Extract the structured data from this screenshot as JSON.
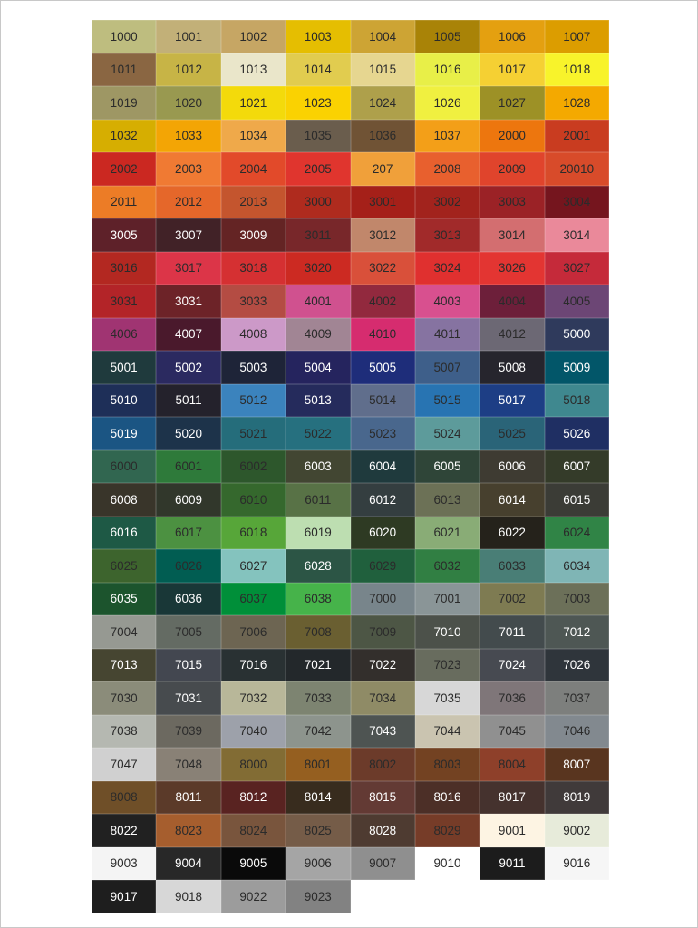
{
  "text_colors": {
    "d": "#2b2b2b",
    "w": "#ffffff"
  },
  "swatches": [
    {
      "code": "1000",
      "bg": "#bebd7f",
      "fg": "d"
    },
    {
      "code": "1001",
      "bg": "#c2b078",
      "fg": "d"
    },
    {
      "code": "1002",
      "bg": "#c6a664",
      "fg": "d"
    },
    {
      "code": "1003",
      "bg": "#e5be01",
      "fg": "d"
    },
    {
      "code": "1004",
      "bg": "#cda434",
      "fg": "d"
    },
    {
      "code": "1005",
      "bg": "#a98307",
      "fg": "d"
    },
    {
      "code": "1006",
      "bg": "#e4a010",
      "fg": "d"
    },
    {
      "code": "1007",
      "bg": "#dc9d00",
      "fg": "d"
    },
    {
      "code": "1011",
      "bg": "#8a6642",
      "fg": "d"
    },
    {
      "code": "1012",
      "bg": "#c7b446",
      "fg": "d"
    },
    {
      "code": "1013",
      "bg": "#eae6ca",
      "fg": "d"
    },
    {
      "code": "1014",
      "bg": "#e1cc4f",
      "fg": "d"
    },
    {
      "code": "1015",
      "bg": "#e6d690",
      "fg": "d"
    },
    {
      "code": "1016",
      "bg": "#e8ef48",
      "fg": "d"
    },
    {
      "code": "1017",
      "bg": "#f5d033",
      "fg": "d"
    },
    {
      "code": "1018",
      "bg": "#f8f32b",
      "fg": "d"
    },
    {
      "code": "1019",
      "bg": "#9e9764",
      "fg": "d"
    },
    {
      "code": "1020",
      "bg": "#999950",
      "fg": "d"
    },
    {
      "code": "1021",
      "bg": "#f3da0b",
      "fg": "d"
    },
    {
      "code": "1023",
      "bg": "#fad201",
      "fg": "d"
    },
    {
      "code": "1024",
      "bg": "#aea04b",
      "fg": "d"
    },
    {
      "code": "1026",
      "bg": "#f0f040",
      "fg": "d"
    },
    {
      "code": "1027",
      "bg": "#9d9126",
      "fg": "d"
    },
    {
      "code": "1028",
      "bg": "#f4a900",
      "fg": "d"
    },
    {
      "code": "1032",
      "bg": "#d6ae01",
      "fg": "d"
    },
    {
      "code": "1033",
      "bg": "#f3a505",
      "fg": "d"
    },
    {
      "code": "1034",
      "bg": "#efa94a",
      "fg": "d"
    },
    {
      "code": "1035",
      "bg": "#6a5d4d",
      "fg": "d"
    },
    {
      "code": "1036",
      "bg": "#705335",
      "fg": "d"
    },
    {
      "code": "1037",
      "bg": "#f39f18",
      "fg": "d"
    },
    {
      "code": "2000",
      "bg": "#ed760e",
      "fg": "d"
    },
    {
      "code": "2001",
      "bg": "#c93c20",
      "fg": "d"
    },
    {
      "code": "2002",
      "bg": "#cb2821",
      "fg": "d"
    },
    {
      "code": "2003",
      "bg": "#f07a33",
      "fg": "d"
    },
    {
      "code": "2004",
      "bg": "#e24a2a",
      "fg": "d"
    },
    {
      "code": "2005",
      "bg": "#e0352e",
      "fg": "d"
    },
    {
      "code": "207",
      "bg": "#f0a03a",
      "fg": "d"
    },
    {
      "code": "2008",
      "bg": "#e8602e",
      "fg": "d"
    },
    {
      "code": "2009",
      "bg": "#e0442c",
      "fg": "d"
    },
    {
      "code": "20010",
      "bg": "#d84b2a",
      "fg": "d"
    },
    {
      "code": "2011",
      "bg": "#ec7c26",
      "fg": "d"
    },
    {
      "code": "2012",
      "bg": "#e5672a",
      "fg": "d"
    },
    {
      "code": "2013",
      "bg": "#c4552e",
      "fg": "d"
    },
    {
      "code": "3000",
      "bg": "#af2b1e",
      "fg": "d"
    },
    {
      "code": "3001",
      "bg": "#a52019",
      "fg": "d"
    },
    {
      "code": "3002",
      "bg": "#a2231d",
      "fg": "d"
    },
    {
      "code": "3003",
      "bg": "#9b2226",
      "fg": "d"
    },
    {
      "code": "3004",
      "bg": "#75151e",
      "fg": "d"
    },
    {
      "code": "3005",
      "bg": "#5e2129",
      "fg": "w"
    },
    {
      "code": "3007",
      "bg": "#412227",
      "fg": "w"
    },
    {
      "code": "3009",
      "bg": "#642424",
      "fg": "w"
    },
    {
      "code": "3011",
      "bg": "#78272a",
      "fg": "d"
    },
    {
      "code": "3012",
      "bg": "#c1876b",
      "fg": "d"
    },
    {
      "code": "3013",
      "bg": "#a12a2a",
      "fg": "d"
    },
    {
      "code": "3014",
      "bg": "#d36e70",
      "fg": "d"
    },
    {
      "code": "3014",
      "bg": "#ea899a",
      "fg": "d"
    },
    {
      "code": "3016",
      "bg": "#b32821",
      "fg": "d"
    },
    {
      "code": "3017",
      "bg": "#dc3548",
      "fg": "d"
    },
    {
      "code": "3018",
      "bg": "#d53032",
      "fg": "d"
    },
    {
      "code": "3020",
      "bg": "#cc2a22",
      "fg": "d"
    },
    {
      "code": "3022",
      "bg": "#d9503a",
      "fg": "d"
    },
    {
      "code": "3024",
      "bg": "#e0302f",
      "fg": "d"
    },
    {
      "code": "3026",
      "bg": "#e33532",
      "fg": "d"
    },
    {
      "code": "3027",
      "bg": "#c52a3a",
      "fg": "d"
    },
    {
      "code": "3031",
      "bg": "#b32428",
      "fg": "d"
    },
    {
      "code": "3031",
      "bg": "#6d2328",
      "fg": "w"
    },
    {
      "code": "3033",
      "bg": "#b44c43",
      "fg": "d"
    },
    {
      "code": "4001",
      "bg": "#d0518f",
      "fg": "d"
    },
    {
      "code": "4002",
      "bg": "#92293e",
      "fg": "d"
    },
    {
      "code": "4003",
      "bg": "#d8508f",
      "fg": "d"
    },
    {
      "code": "4004",
      "bg": "#6d1f3a",
      "fg": "d"
    },
    {
      "code": "4005",
      "bg": "#6c4675",
      "fg": "d"
    },
    {
      "code": "4006",
      "bg": "#a03472",
      "fg": "d"
    },
    {
      "code": "4007",
      "bg": "#4a192c",
      "fg": "w"
    },
    {
      "code": "4008",
      "bg": "#cc99c8",
      "fg": "d"
    },
    {
      "code": "4009",
      "bg": "#a18594",
      "fg": "d"
    },
    {
      "code": "4010",
      "bg": "#d62c6f",
      "fg": "d"
    },
    {
      "code": "4011",
      "bg": "#8673a1",
      "fg": "d"
    },
    {
      "code": "4012",
      "bg": "#6c6874",
      "fg": "d"
    },
    {
      "code": "5000",
      "bg": "#2f3a5c",
      "fg": "w"
    },
    {
      "code": "5001",
      "bg": "#1f3a3d",
      "fg": "w"
    },
    {
      "code": "5002",
      "bg": "#2b2a60",
      "fg": "w"
    },
    {
      "code": "5003",
      "bg": "#1e2438",
      "fg": "w"
    },
    {
      "code": "5004",
      "bg": "#25245e",
      "fg": "w"
    },
    {
      "code": "5005",
      "bg": "#1e2d7a",
      "fg": "w"
    },
    {
      "code": "5007",
      "bg": "#3e5f8a",
      "fg": "d"
    },
    {
      "code": "5008",
      "bg": "#26252d",
      "fg": "w"
    },
    {
      "code": "5009",
      "bg": "#025669",
      "fg": "w"
    },
    {
      "code": "5010",
      "bg": "#1e2f58",
      "fg": "w"
    },
    {
      "code": "5011",
      "bg": "#24222c",
      "fg": "w"
    },
    {
      "code": "5012",
      "bg": "#3b83bd",
      "fg": "d"
    },
    {
      "code": "5013",
      "bg": "#252b5c",
      "fg": "w"
    },
    {
      "code": "5014",
      "bg": "#606e8c",
      "fg": "d"
    },
    {
      "code": "5015",
      "bg": "#2874b2",
      "fg": "d"
    },
    {
      "code": "5017",
      "bg": "#1d3e85",
      "fg": "w"
    },
    {
      "code": "5018",
      "bg": "#3f888f",
      "fg": "d"
    },
    {
      "code": "5019",
      "bg": "#1b5583",
      "fg": "w"
    },
    {
      "code": "5020",
      "bg": "#1d334a",
      "fg": "w"
    },
    {
      "code": "5021",
      "bg": "#256d7b",
      "fg": "d"
    },
    {
      "code": "5022",
      "bg": "#26707f",
      "fg": "d"
    },
    {
      "code": "5023",
      "bg": "#49678d",
      "fg": "d"
    },
    {
      "code": "5024",
      "bg": "#5d9b9b",
      "fg": "d"
    },
    {
      "code": "5025",
      "bg": "#2a6478",
      "fg": "d"
    },
    {
      "code": "5026",
      "bg": "#1f2f63",
      "fg": "w"
    },
    {
      "code": "6000",
      "bg": "#316650",
      "fg": "d"
    },
    {
      "code": "6001",
      "bg": "#2e7a3a",
      "fg": "d"
    },
    {
      "code": "6002",
      "bg": "#2d572c",
      "fg": "d"
    },
    {
      "code": "6003",
      "bg": "#424632",
      "fg": "w"
    },
    {
      "code": "6004",
      "bg": "#1f3a3d",
      "fg": "w"
    },
    {
      "code": "6005",
      "bg": "#2f4538",
      "fg": "w"
    },
    {
      "code": "6006",
      "bg": "#3e3b32",
      "fg": "w"
    },
    {
      "code": "6007",
      "bg": "#343b29",
      "fg": "w"
    },
    {
      "code": "6008",
      "bg": "#39352a",
      "fg": "w"
    },
    {
      "code": "6009",
      "bg": "#31372b",
      "fg": "w"
    },
    {
      "code": "6010",
      "bg": "#35682d",
      "fg": "d"
    },
    {
      "code": "6011",
      "bg": "#587246",
      "fg": "d"
    },
    {
      "code": "6012",
      "bg": "#343e40",
      "fg": "w"
    },
    {
      "code": "6013",
      "bg": "#6c7156",
      "fg": "d"
    },
    {
      "code": "6014",
      "bg": "#47402e",
      "fg": "w"
    },
    {
      "code": "6015",
      "bg": "#3b3c36",
      "fg": "w"
    },
    {
      "code": "6016",
      "bg": "#1e5945",
      "fg": "w"
    },
    {
      "code": "6017",
      "bg": "#4c9141",
      "fg": "d"
    },
    {
      "code": "6018",
      "bg": "#57a639",
      "fg": "d"
    },
    {
      "code": "6019",
      "bg": "#bddeb1",
      "fg": "d"
    },
    {
      "code": "6020",
      "bg": "#2e3a23",
      "fg": "w"
    },
    {
      "code": "6021",
      "bg": "#89ac76",
      "fg": "d"
    },
    {
      "code": "6022",
      "bg": "#25221b",
      "fg": "w"
    },
    {
      "code": "6024",
      "bg": "#308446",
      "fg": "d"
    },
    {
      "code": "6025",
      "bg": "#3d642d",
      "fg": "d"
    },
    {
      "code": "6026",
      "bg": "#015d52",
      "fg": "d"
    },
    {
      "code": "6027",
      "bg": "#84c3be",
      "fg": "d"
    },
    {
      "code": "6028",
      "bg": "#2c5545",
      "fg": "w"
    },
    {
      "code": "6029",
      "bg": "#20603d",
      "fg": "d"
    },
    {
      "code": "6032",
      "bg": "#317f43",
      "fg": "d"
    },
    {
      "code": "6033",
      "bg": "#497e76",
      "fg": "d"
    },
    {
      "code": "6034",
      "bg": "#7fb5b5",
      "fg": "d"
    },
    {
      "code": "6035",
      "bg": "#1c542d",
      "fg": "w"
    },
    {
      "code": "6036",
      "bg": "#193737",
      "fg": "w"
    },
    {
      "code": "6037",
      "bg": "#008f39",
      "fg": "d"
    },
    {
      "code": "6038",
      "bg": "#46b34a",
      "fg": "d"
    },
    {
      "code": "7000",
      "bg": "#78858b",
      "fg": "d"
    },
    {
      "code": "7001",
      "bg": "#8a9597",
      "fg": "d"
    },
    {
      "code": "7002",
      "bg": "#7e7b52",
      "fg": "d"
    },
    {
      "code": "7003",
      "bg": "#6c7059",
      "fg": "d"
    },
    {
      "code": "7004",
      "bg": "#969992",
      "fg": "d"
    },
    {
      "code": "7005",
      "bg": "#646b63",
      "fg": "d"
    },
    {
      "code": "7006",
      "bg": "#6d6552",
      "fg": "d"
    },
    {
      "code": "7008",
      "bg": "#6a5f31",
      "fg": "d"
    },
    {
      "code": "7009",
      "bg": "#4d5645",
      "fg": "d"
    },
    {
      "code": "7010",
      "bg": "#4c514a",
      "fg": "w"
    },
    {
      "code": "7011",
      "bg": "#434b4d",
      "fg": "w"
    },
    {
      "code": "7012",
      "bg": "#4e5754",
      "fg": "w"
    },
    {
      "code": "7013",
      "bg": "#464531",
      "fg": "w"
    },
    {
      "code": "7015",
      "bg": "#434750",
      "fg": "w"
    },
    {
      "code": "7016",
      "bg": "#293133",
      "fg": "w"
    },
    {
      "code": "7021",
      "bg": "#23282b",
      "fg": "w"
    },
    {
      "code": "7022",
      "bg": "#332f2c",
      "fg": "w"
    },
    {
      "code": "7023",
      "bg": "#686c5e",
      "fg": "d"
    },
    {
      "code": "7024",
      "bg": "#474a51",
      "fg": "w"
    },
    {
      "code": "7026",
      "bg": "#2f353b",
      "fg": "w"
    },
    {
      "code": "7030",
      "bg": "#8b8c7a",
      "fg": "d"
    },
    {
      "code": "7031",
      "bg": "#474b4e",
      "fg": "w"
    },
    {
      "code": "7032",
      "bg": "#b8b799",
      "fg": "d"
    },
    {
      "code": "7033",
      "bg": "#7d8471",
      "fg": "d"
    },
    {
      "code": "7034",
      "bg": "#8f8b66",
      "fg": "d"
    },
    {
      "code": "7035",
      "bg": "#d7d7d7",
      "fg": "d"
    },
    {
      "code": "7036",
      "bg": "#7f7679",
      "fg": "d"
    },
    {
      "code": "7037",
      "bg": "#7d7f7d",
      "fg": "d"
    },
    {
      "code": "7038",
      "bg": "#b5b8b1",
      "fg": "d"
    },
    {
      "code": "7039",
      "bg": "#6c6960",
      "fg": "d"
    },
    {
      "code": "7040",
      "bg": "#9da1aa",
      "fg": "d"
    },
    {
      "code": "7042",
      "bg": "#8d948d",
      "fg": "d"
    },
    {
      "code": "7043",
      "bg": "#4e5452",
      "fg": "w"
    },
    {
      "code": "7044",
      "bg": "#cac4b0",
      "fg": "d"
    },
    {
      "code": "7045",
      "bg": "#909090",
      "fg": "d"
    },
    {
      "code": "7046",
      "bg": "#82898f",
      "fg": "d"
    },
    {
      "code": "7047",
      "bg": "#d0d0d0",
      "fg": "d"
    },
    {
      "code": "7048",
      "bg": "#898176",
      "fg": "d"
    },
    {
      "code": "8000",
      "bg": "#826c34",
      "fg": "d"
    },
    {
      "code": "8001",
      "bg": "#955f20",
      "fg": "d"
    },
    {
      "code": "8002",
      "bg": "#6c3b2a",
      "fg": "d"
    },
    {
      "code": "8003",
      "bg": "#734222",
      "fg": "d"
    },
    {
      "code": "8004",
      "bg": "#8e402a",
      "fg": "d"
    },
    {
      "code": "8007",
      "bg": "#59351f",
      "fg": "w"
    },
    {
      "code": "8008",
      "bg": "#6f4f28",
      "fg": "d"
    },
    {
      "code": "8011",
      "bg": "#5b3a29",
      "fg": "w"
    },
    {
      "code": "8012",
      "bg": "#592321",
      "fg": "w"
    },
    {
      "code": "8014",
      "bg": "#382c1e",
      "fg": "w"
    },
    {
      "code": "8015",
      "bg": "#633a34",
      "fg": "w"
    },
    {
      "code": "8016",
      "bg": "#4c2f27",
      "fg": "w"
    },
    {
      "code": "8017",
      "bg": "#45322e",
      "fg": "w"
    },
    {
      "code": "8019",
      "bg": "#403a3a",
      "fg": "w"
    },
    {
      "code": "8022",
      "bg": "#212121",
      "fg": "w"
    },
    {
      "code": "8023",
      "bg": "#a65e2e",
      "fg": "d"
    },
    {
      "code": "8024",
      "bg": "#79553d",
      "fg": "d"
    },
    {
      "code": "8025",
      "bg": "#755c48",
      "fg": "d"
    },
    {
      "code": "8028",
      "bg": "#4e3b31",
      "fg": "w"
    },
    {
      "code": "8029",
      "bg": "#763c28",
      "fg": "d"
    },
    {
      "code": "9001",
      "bg": "#fdf4e3",
      "fg": "d"
    },
    {
      "code": "9002",
      "bg": "#e7ebda",
      "fg": "d"
    },
    {
      "code": "9003",
      "bg": "#f4f4f4",
      "fg": "d"
    },
    {
      "code": "9004",
      "bg": "#282828",
      "fg": "w"
    },
    {
      "code": "9005",
      "bg": "#0a0a0a",
      "fg": "w"
    },
    {
      "code": "9006",
      "bg": "#a5a5a5",
      "fg": "d"
    },
    {
      "code": "9007",
      "bg": "#8f8f8f",
      "fg": "d"
    },
    {
      "code": "9010",
      "bg": "#ffffff",
      "fg": "d"
    },
    {
      "code": "9011",
      "bg": "#1c1c1c",
      "fg": "w"
    },
    {
      "code": "9016",
      "bg": "#f6f6f6",
      "fg": "d"
    },
    {
      "code": "9017",
      "bg": "#1e1e1e",
      "fg": "w"
    },
    {
      "code": "9018",
      "bg": "#d7d7d7",
      "fg": "d"
    },
    {
      "code": "9022",
      "bg": "#9c9c9c",
      "fg": "d"
    },
    {
      "code": "9023",
      "bg": "#828282",
      "fg": "d"
    }
  ]
}
